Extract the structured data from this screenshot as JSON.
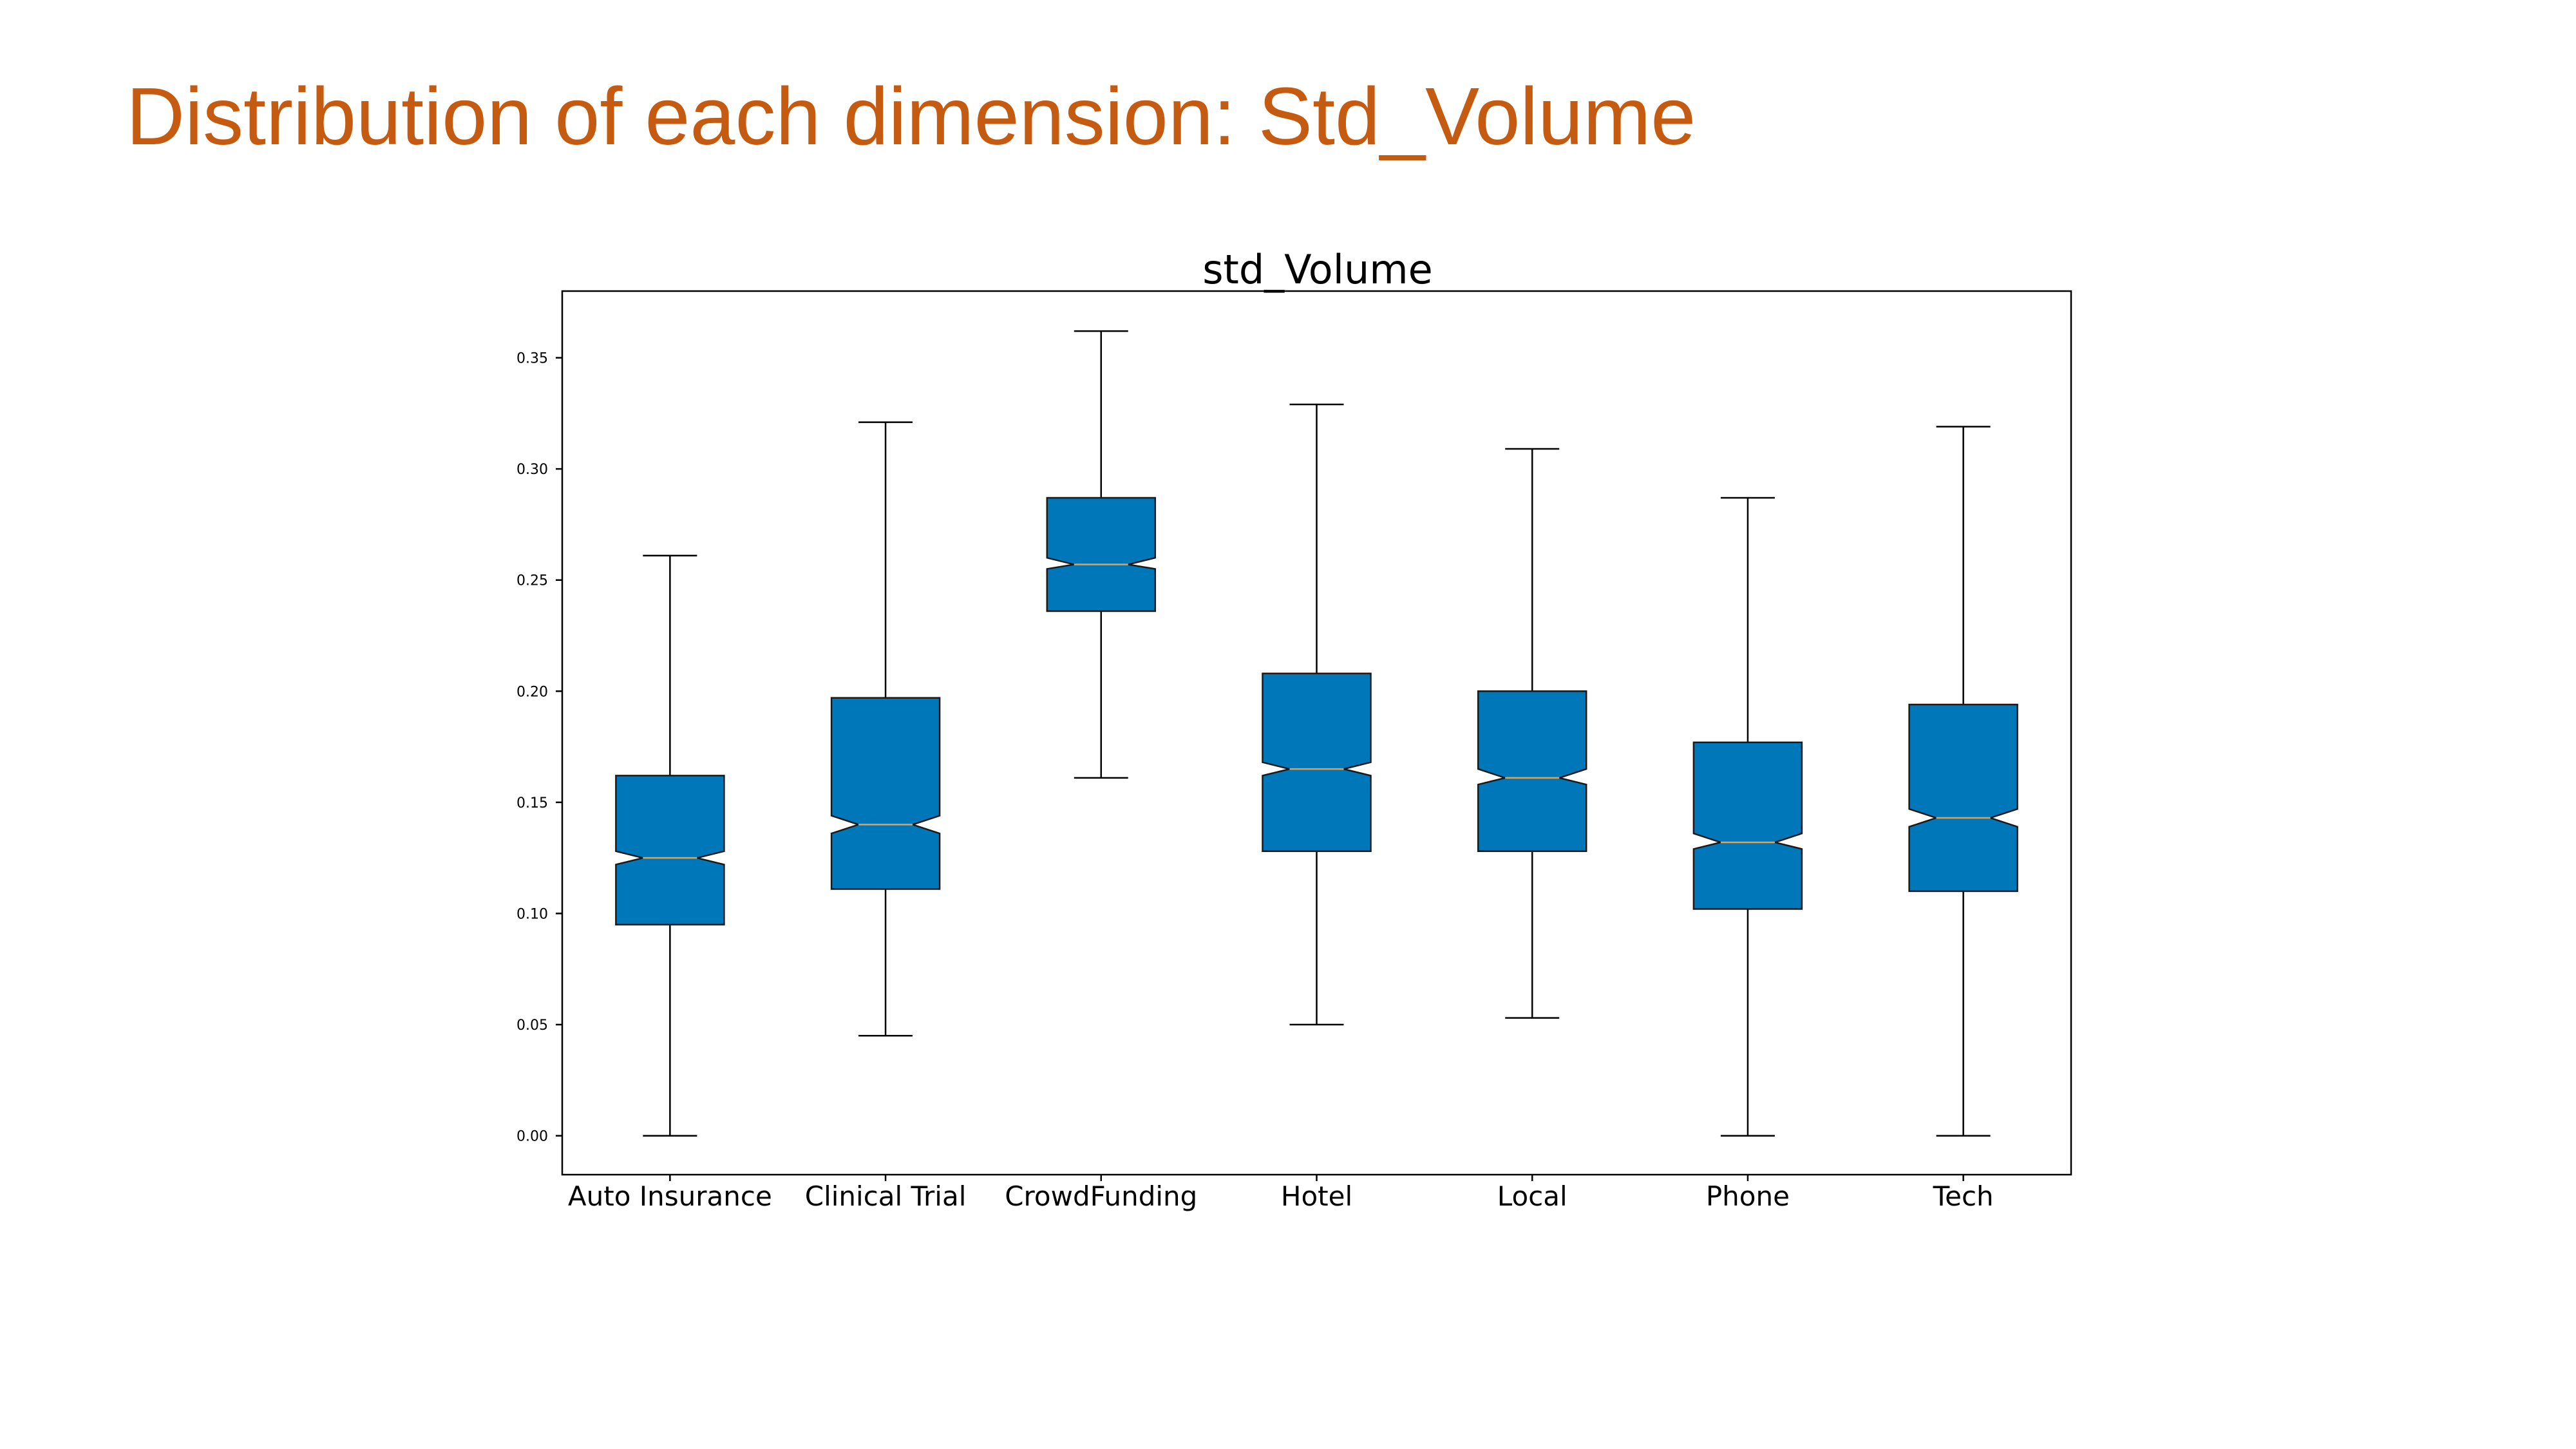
{
  "slide": {
    "title": "Distribution of each dimension: Std_Volume",
    "title_color": "#C55A11"
  },
  "chart_data": {
    "type": "box",
    "title": "std_Volume",
    "notched": true,
    "box_color": "#0077B8",
    "edge_color": "#1a1a1a",
    "median_color": "#E5A050",
    "ylim": [
      -0.0175,
      0.38
    ],
    "yticks": [
      "0.00",
      "0.05",
      "0.10",
      "0.15",
      "0.20",
      "0.25",
      "0.30",
      "0.35"
    ],
    "categories": [
      "Auto Insurance",
      "Clinical Trial",
      "CrowdFunding",
      "Hotel",
      "Local",
      "Phone",
      "Tech"
    ],
    "boxes": [
      {
        "category": "Auto Insurance",
        "whisker_low": 0.0,
        "q1": 0.095,
        "median": 0.125,
        "q3": 0.162,
        "whisker_high": 0.261,
        "notch_low": 0.122,
        "notch_high": 0.128
      },
      {
        "category": "Clinical Trial",
        "whisker_low": 0.045,
        "q1": 0.111,
        "median": 0.14,
        "q3": 0.197,
        "whisker_high": 0.321,
        "notch_low": 0.136,
        "notch_high": 0.144
      },
      {
        "category": "CrowdFunding",
        "whisker_low": 0.161,
        "q1": 0.236,
        "median": 0.257,
        "q3": 0.287,
        "whisker_high": 0.362,
        "notch_low": 0.255,
        "notch_high": 0.26
      },
      {
        "category": "Hotel",
        "whisker_low": 0.05,
        "q1": 0.128,
        "median": 0.165,
        "q3": 0.208,
        "whisker_high": 0.329,
        "notch_low": 0.162,
        "notch_high": 0.168
      },
      {
        "category": "Local",
        "whisker_low": 0.053,
        "q1": 0.128,
        "median": 0.161,
        "q3": 0.2,
        "whisker_high": 0.309,
        "notch_low": 0.158,
        "notch_high": 0.165
      },
      {
        "category": "Phone",
        "whisker_low": 0.0,
        "q1": 0.102,
        "median": 0.132,
        "q3": 0.177,
        "whisker_high": 0.287,
        "notch_low": 0.129,
        "notch_high": 0.136
      },
      {
        "category": "Tech",
        "whisker_low": 0.0,
        "q1": 0.11,
        "median": 0.143,
        "q3": 0.194,
        "whisker_high": 0.319,
        "notch_low": 0.139,
        "notch_high": 0.147
      }
    ]
  }
}
